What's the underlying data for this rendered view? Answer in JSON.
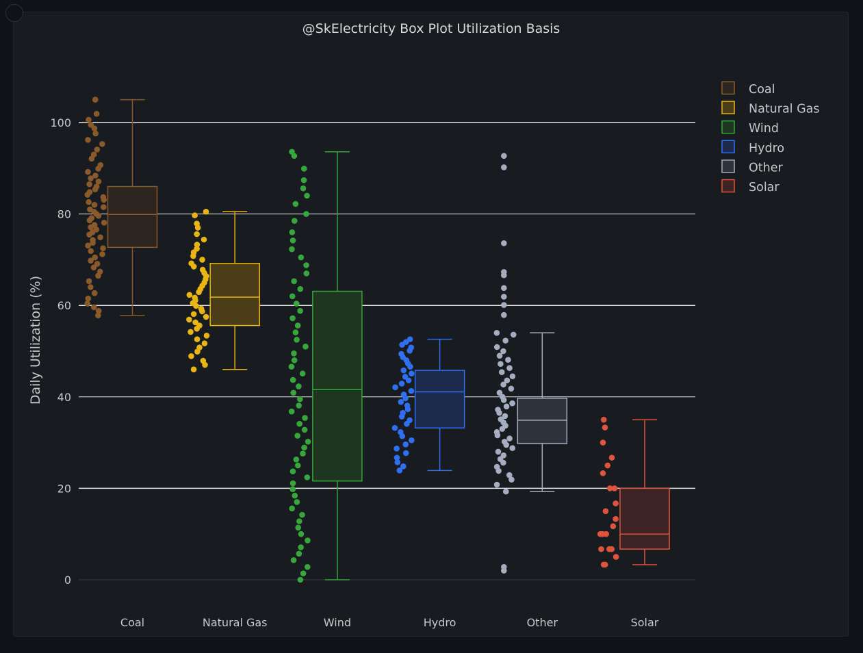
{
  "chart_data": {
    "type": "box",
    "title": "@SkElectricity Box Plot Utilization Basis",
    "ylabel": "Daily Utilization (%)",
    "xlabel": "",
    "ylim": [
      0,
      110
    ],
    "yticks": [
      0,
      20,
      40,
      60,
      80,
      100
    ],
    "grid": true,
    "legend_position": "top-right",
    "categories": [
      "Coal",
      "Natural Gas",
      "Wind",
      "Hydro",
      "Other",
      "Solar"
    ],
    "series": [
      {
        "name": "Coal",
        "color": "#8b5a2b",
        "fill": "#2d251f",
        "min": 57.8,
        "q1": 72.7,
        "median": 79.9,
        "q3": 86.0,
        "max": 105.0,
        "outliers": [],
        "points": [
          105,
          101.9,
          100.6,
          99.5,
          98.7,
          97.6,
          96.2,
          95.3,
          94.1,
          93.0,
          92.1,
          90.7,
          89.9,
          89.2,
          88.4,
          87.8,
          87.1,
          86.5,
          86.0,
          85.4,
          84.8,
          84.2,
          83.7,
          83.1,
          82.6,
          82.0,
          81.5,
          81.0,
          80.5,
          80.0,
          79.6,
          79.1,
          78.6,
          78.1,
          77.6,
          77.1,
          76.6,
          76.0,
          75.5,
          74.9,
          74.3,
          73.7,
          73.1,
          72.5,
          71.9,
          71.2,
          70.5,
          69.8,
          69.1,
          68.3,
          67.4,
          66.5,
          65.3,
          64.0,
          62.7,
          61.5,
          60.4,
          59.6,
          58.8,
          57.8
        ]
      },
      {
        "name": "Natural Gas",
        "color": "#e8b514",
        "fill": "#4a3d17",
        "min": 46.0,
        "q1": 55.6,
        "median": 61.8,
        "q3": 69.2,
        "max": 80.5,
        "outliers": [],
        "points": [
          80.5,
          79.7,
          77.9,
          77.0,
          75.6,
          74.4,
          73.3,
          72.4,
          71.6,
          70.8,
          70.0,
          69.2,
          68.5,
          67.8,
          67.1,
          66.4,
          65.7,
          65.0,
          64.3,
          63.6,
          62.9,
          62.3,
          61.7,
          61.1,
          60.5,
          59.9,
          59.3,
          58.7,
          58.1,
          57.5,
          56.9,
          56.3,
          55.6,
          54.9,
          54.2,
          53.4,
          52.6,
          51.7,
          50.8,
          49.9,
          48.9,
          47.9,
          47.0,
          46.0
        ]
      },
      {
        "name": "Wind",
        "color": "#37a63b",
        "fill": "#1e3520",
        "min": 0.0,
        "q1": 21.6,
        "median": 41.6,
        "q3": 63.1,
        "max": 93.6,
        "outliers": [],
        "points": [
          93.6,
          92.7,
          89.9,
          87.4,
          85.6,
          84.0,
          82.2,
          80.0,
          78.5,
          76.0,
          74.2,
          72.3,
          70.5,
          68.8,
          67.0,
          65.3,
          63.6,
          62.0,
          60.4,
          58.8,
          57.2,
          55.6,
          54.1,
          52.5,
          51.0,
          49.5,
          48.0,
          46.6,
          45.1,
          43.7,
          42.3,
          40.9,
          39.5,
          38.1,
          36.8,
          35.4,
          34.1,
          32.8,
          31.5,
          30.2,
          28.9,
          27.6,
          26.3,
          25.0,
          23.7,
          22.4,
          21.1,
          19.8,
          18.4,
          17.0,
          15.6,
          14.2,
          12.8,
          11.4,
          10.0,
          8.6,
          7.1,
          5.7,
          4.3,
          2.8,
          1.4,
          0.0
        ]
      },
      {
        "name": "Hydro",
        "color": "#2f6ff0",
        "fill": "#1b2a4d",
        "min": 23.9,
        "q1": 33.2,
        "median": 41.1,
        "q3": 45.8,
        "max": 52.6,
        "outliers": [],
        "points": [
          52.6,
          52.0,
          51.4,
          50.8,
          50.1,
          49.4,
          48.7,
          48.0,
          47.3,
          46.6,
          45.8,
          45.1,
          44.4,
          43.6,
          42.9,
          42.1,
          41.3,
          40.5,
          39.7,
          38.9,
          38.1,
          37.3,
          36.5,
          35.7,
          34.9,
          34.1,
          33.2,
          32.3,
          31.4,
          30.5,
          29.6,
          28.7,
          27.7,
          26.7,
          25.7,
          24.8,
          23.9
        ]
      },
      {
        "name": "Other",
        "color": "#a5adc0",
        "fill": "#2e323a",
        "min": 19.3,
        "q1": 29.8,
        "median": 34.9,
        "q3": 39.7,
        "max": 54.0,
        "outliers": [
          92.7,
          90.2,
          73.6,
          67.3,
          66.6,
          63.8,
          61.9,
          60.1,
          57.9,
          2.8,
          2.0
        ],
        "points": [
          54.0,
          53.6,
          52.3,
          50.9,
          50.0,
          49.0,
          48.1,
          47.2,
          46.3,
          45.4,
          44.5,
          43.6,
          42.7,
          41.8,
          40.9,
          40.0,
          39.3,
          38.6,
          37.9,
          37.2,
          36.5,
          35.8,
          35.1,
          34.4,
          33.7,
          33.0,
          32.3,
          31.6,
          30.9,
          30.2,
          29.5,
          28.8,
          28.0,
          27.2,
          26.4,
          25.6,
          24.7,
          23.8,
          22.9,
          21.9,
          20.8,
          19.3
        ]
      },
      {
        "name": "Solar",
        "color": "#e0543e",
        "fill": "#3d2324",
        "min": 3.3,
        "q1": 6.7,
        "median": 10.0,
        "q3": 20.0,
        "max": 35.0,
        "outliers": [],
        "points": [
          35.0,
          33.3,
          30.0,
          26.7,
          25.0,
          23.3,
          20.0,
          20.0,
          16.7,
          15.0,
          13.3,
          11.7,
          10.0,
          10.0,
          10.0,
          6.7,
          6.7,
          6.7,
          5.0,
          3.3,
          3.3
        ]
      }
    ]
  }
}
